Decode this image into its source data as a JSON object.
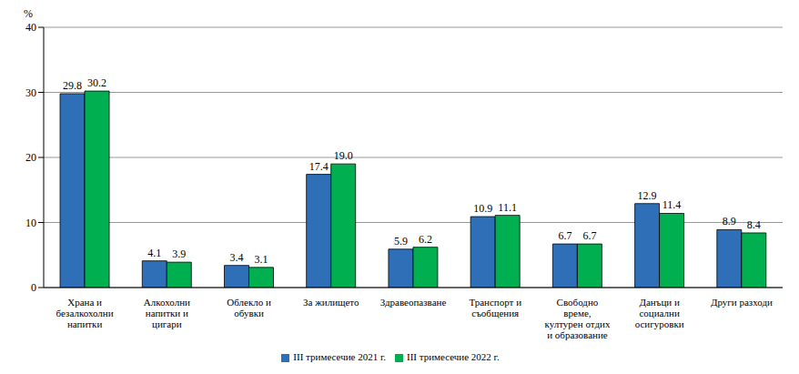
{
  "chart_data": {
    "type": "bar",
    "ylabel": "%",
    "categories": [
      "Храна и\nбезалкохолни\nнапитки",
      "Алкохолни\nнапитки  и\nцигари",
      "Облекло и\nобувки",
      "За жилището",
      "Здравеопазване",
      "Транспорт и\nсъобщения",
      "Свободно\nвреме,\nкултурен отдих\nи образование",
      "Данъци и\nсоциални\nосигуровки",
      "Други разходи"
    ],
    "series": [
      {
        "name": "III тримесечие 2021 г.",
        "color": "#2e6fb7",
        "values": [
          29.8,
          4.1,
          3.4,
          17.4,
          5.9,
          10.9,
          6.7,
          12.9,
          8.9
        ]
      },
      {
        "name": "III тримесечие 2022 г.",
        "color": "#00b050",
        "values": [
          30.2,
          3.9,
          3.1,
          19.0,
          6.2,
          11.1,
          6.7,
          11.4,
          8.4
        ]
      }
    ],
    "ylim": [
      0,
      40
    ],
    "yticks": [
      0,
      10,
      20,
      30,
      40
    ],
    "grid": true,
    "legend": "bottom",
    "data_labels": true
  }
}
